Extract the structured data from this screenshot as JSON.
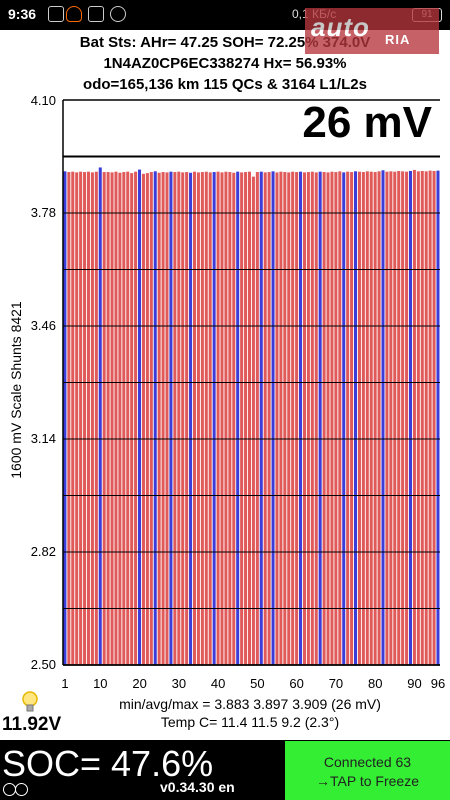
{
  "status_bar": {
    "time": "9:36",
    "network": "0,1 КБ/с",
    "battery": "91"
  },
  "watermark": {
    "brand": "auto",
    "sub": "RIA"
  },
  "header": {
    "line1": "Bat Sts: AHr= 47.25 SOH= 72.25% 374.0V",
    "line2": "1N4AZ0CP6EC338274   Hx= 56.93%",
    "line3": "odo=165,136 km  115 QCs & 3164 L1/L2s"
  },
  "readout": {
    "delta_mv": "26 mV"
  },
  "y_axis_label": "1600 mV Scale   Shunts 8421",
  "stats": {
    "minmax": "min/avg/max = 3.883 3.897 3.909  (26 mV)",
    "temp": "Temp C= 11.4  11.5  9.2  (2.3°)"
  },
  "pack_voltage": "11.92V",
  "soc": "SOC= 47.6%",
  "version": "v0.34.30 en",
  "connect": {
    "line1": "Connected 63",
    "line2": "→TAP to Freeze"
  },
  "colors": {
    "bar_red": "#e05a5a",
    "bar_blue": "#3c3cd8",
    "connect_bg": "#33ee33"
  },
  "chart_data": {
    "type": "bar",
    "title": "",
    "xlabel": "",
    "ylabel": "1600 mV Scale   Shunts 8421",
    "ylim": [
      2.5,
      4.1
    ],
    "y_ticks": [
      "4.10",
      "3.78",
      "3.46",
      "3.14",
      "2.82",
      "2.50"
    ],
    "x_ticks": [
      1,
      10,
      20,
      30,
      40,
      50,
      60,
      70,
      80,
      90,
      96
    ],
    "grid": true,
    "shunt_color_pattern": "cells in blue have active shunts; others red",
    "blue_cells": [
      1,
      10,
      20,
      24,
      28,
      33,
      39,
      45,
      51,
      54,
      61,
      66,
      72,
      75,
      82,
      89,
      96
    ],
    "cell_voltages_v": [
      3.898,
      3.896,
      3.897,
      3.895,
      3.897,
      3.896,
      3.897,
      3.895,
      3.897,
      3.909,
      3.896,
      3.896,
      3.895,
      3.897,
      3.894,
      3.896,
      3.897,
      3.893,
      3.897,
      3.903,
      3.891,
      3.893,
      3.896,
      3.898,
      3.894,
      3.896,
      3.895,
      3.897,
      3.896,
      3.897,
      3.895,
      3.896,
      3.894,
      3.897,
      3.895,
      3.896,
      3.897,
      3.895,
      3.896,
      3.897,
      3.895,
      3.897,
      3.896,
      3.894,
      3.897,
      3.895,
      3.896,
      3.897,
      3.883,
      3.896,
      3.897,
      3.895,
      3.896,
      3.898,
      3.895,
      3.897,
      3.896,
      3.895,
      3.897,
      3.896,
      3.897,
      3.895,
      3.896,
      3.897,
      3.895,
      3.897,
      3.896,
      3.895,
      3.897,
      3.896,
      3.898,
      3.895,
      3.897,
      3.896,
      3.898,
      3.897,
      3.896,
      3.898,
      3.897,
      3.896,
      3.898,
      3.901,
      3.897,
      3.898,
      3.897,
      3.899,
      3.898,
      3.897,
      3.899,
      3.902,
      3.898,
      3.899,
      3.898,
      3.9,
      3.899,
      3.9
    ]
  }
}
